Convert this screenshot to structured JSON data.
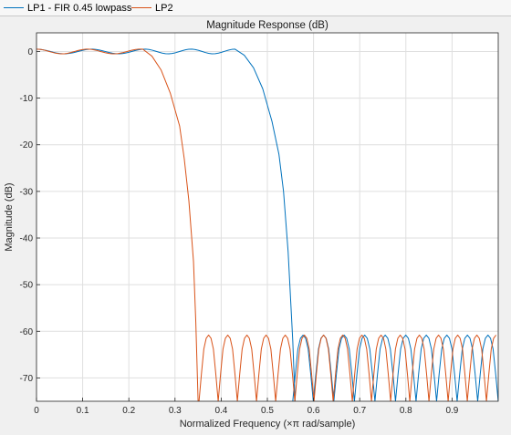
{
  "legend": {
    "items": [
      {
        "label": "LP1 - FIR 0.45 lowpass",
        "color": "#0072BD"
      },
      {
        "label": "LP2",
        "color": "#D95319"
      }
    ]
  },
  "chart_data": {
    "type": "line",
    "title": "Magnitude Response (dB)",
    "xlabel": "Normalized Frequency (×π rad/sample)",
    "ylabel": "Magnitude (dB)",
    "xlim": [
      0,
      1
    ],
    "ylim": [
      -75,
      4
    ],
    "xticks": [
      0,
      0.1,
      0.2,
      0.3,
      0.4,
      0.5,
      0.6,
      0.7,
      0.8,
      0.9
    ],
    "xtick_labels": [
      "0",
      "0.1",
      "0.2",
      "0.3",
      "0.4",
      "0.5",
      "0.6",
      "0.7",
      "0.8",
      "0.9"
    ],
    "yticks": [
      0,
      -10,
      -20,
      -30,
      -40,
      -50,
      -60,
      -70
    ],
    "ytick_labels": [
      "0",
      "-10",
      "-20",
      "-30",
      "-40",
      "-50",
      "-60",
      "-70"
    ],
    "grid": true,
    "legend_position": "top",
    "series": [
      {
        "name": "LP1 - FIR 0.45 lowpass",
        "color": "#0072BD",
        "passband": {
          "range": [
            0,
            0.43
          ],
          "ripple_db": 0.5,
          "ripple_centers": [
            0.0,
            0.12,
            0.235,
            0.335,
            0.43
          ]
        },
        "transition": [
          [
            0.43,
            0.5
          ],
          [
            0.45,
            -0.8
          ],
          [
            0.47,
            -3.5
          ],
          [
            0.49,
            -8
          ],
          [
            0.51,
            -15
          ],
          [
            0.525,
            -22
          ],
          [
            0.535,
            -30
          ],
          [
            0.545,
            -43
          ],
          [
            0.555,
            -62
          ],
          [
            0.56,
            -75
          ]
        ],
        "stopband": {
          "range": [
            0.555,
            1.0
          ],
          "peak_db": -60.8,
          "null_spacing": 0.0445
        }
      },
      {
        "name": "LP2",
        "color": "#D95319",
        "passband": {
          "range": [
            0,
            0.23
          ],
          "ripple_db": 0.5,
          "ripple_centers": [
            0.0,
            0.11,
            0.225
          ]
        },
        "transition": [
          [
            0.23,
            0.5
          ],
          [
            0.25,
            -1
          ],
          [
            0.27,
            -4
          ],
          [
            0.29,
            -9
          ],
          [
            0.31,
            -16
          ],
          [
            0.32,
            -23
          ],
          [
            0.33,
            -32
          ],
          [
            0.34,
            -45
          ],
          [
            0.345,
            -58
          ],
          [
            0.35,
            -75
          ]
        ],
        "stopband": {
          "range": [
            0.352,
            1.0
          ],
          "peak_db": -60.8,
          "null_spacing": 0.0415
        }
      }
    ]
  }
}
